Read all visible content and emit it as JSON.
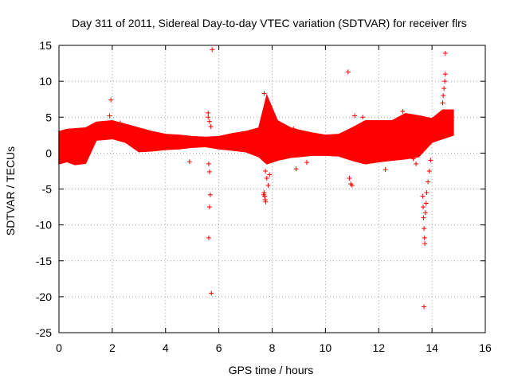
{
  "chart_data": {
    "type": "scatter",
    "title": "Day 311 of 2011, Sidereal Day-to-day VTEC variation (SDTVAR) for receiver flrs",
    "xlabel": "GPS time / hours",
    "ylabel": "SDTVAR / TECUs",
    "xlim": [
      0,
      16
    ],
    "ylim": [
      -25,
      15
    ],
    "xticks": [
      0,
      2,
      4,
      6,
      8,
      10,
      12,
      14,
      16
    ],
    "yticks": [
      -25,
      -20,
      -15,
      -10,
      -5,
      0,
      5,
      10,
      15
    ],
    "grid": true,
    "marker": "+",
    "color": "#ff0000",
    "band": {
      "description": "dense band of samples",
      "x": [
        0.0,
        0.3,
        0.6,
        1.0,
        1.4,
        2.0,
        2.5,
        3.0,
        3.5,
        4.0,
        4.5,
        5.0,
        5.5,
        6.0,
        6.5,
        7.0,
        7.5,
        7.8,
        8.2,
        8.7,
        9.0,
        9.5,
        10.0,
        10.5,
        11.0,
        11.5,
        12.0,
        12.5,
        13.0,
        13.5,
        14.0,
        14.4,
        14.8
      ],
      "lower": [
        -1.5,
        -1.2,
        -1.6,
        -1.4,
        1.8,
        2.0,
        1.5,
        0.2,
        0.3,
        0.5,
        0.6,
        0.8,
        0.9,
        0.6,
        0.4,
        0.2,
        -0.5,
        -1.5,
        -1.0,
        -0.6,
        -0.5,
        -0.3,
        -0.3,
        -0.4,
        -1.0,
        -1.5,
        -1.2,
        -1.0,
        -0.8,
        -0.5,
        1.5,
        2.0,
        2.5
      ],
      "upper": [
        3.0,
        3.3,
        3.4,
        3.5,
        4.3,
        4.5,
        4.0,
        3.5,
        3.0,
        2.6,
        2.5,
        2.3,
        2.2,
        2.3,
        2.7,
        3.0,
        3.5,
        8.0,
        4.5,
        3.5,
        3.2,
        2.8,
        2.5,
        2.6,
        3.5,
        4.5,
        4.5,
        4.5,
        5.5,
        5.2,
        4.8,
        6.0,
        6.0
      ]
    },
    "outliers": [
      {
        "x": 1.95,
        "y": 7.4
      },
      {
        "x": 1.9,
        "y": 5.2
      },
      {
        "x": 2.3,
        "y": 4.2
      },
      {
        "x": 4.9,
        "y": -1.2
      },
      {
        "x": 5.6,
        "y": 5.6
      },
      {
        "x": 5.6,
        "y": 5.0
      },
      {
        "x": 5.65,
        "y": 4.4
      },
      {
        "x": 5.7,
        "y": 3.7
      },
      {
        "x": 5.62,
        "y": -1.5
      },
      {
        "x": 5.65,
        "y": -2.6
      },
      {
        "x": 5.68,
        "y": -5.8
      },
      {
        "x": 5.65,
        "y": -7.5
      },
      {
        "x": 5.62,
        "y": -11.8
      },
      {
        "x": 5.75,
        "y": 14.4
      },
      {
        "x": 5.72,
        "y": -19.5
      },
      {
        "x": 7.7,
        "y": 8.3
      },
      {
        "x": 7.75,
        "y": -2.5
      },
      {
        "x": 7.8,
        "y": -3.5
      },
      {
        "x": 7.85,
        "y": -4.5
      },
      {
        "x": 7.9,
        "y": -3.0
      },
      {
        "x": 7.7,
        "y": -5.5
      },
      {
        "x": 7.72,
        "y": -6.0
      },
      {
        "x": 7.74,
        "y": -6.5
      },
      {
        "x": 7.68,
        "y": -5.8
      },
      {
        "x": 7.76,
        "y": -6.8
      },
      {
        "x": 8.8,
        "y": 3.4
      },
      {
        "x": 8.9,
        "y": -2.2
      },
      {
        "x": 10.85,
        "y": 11.3
      },
      {
        "x": 10.9,
        "y": -3.5
      },
      {
        "x": 10.95,
        "y": -4.3
      },
      {
        "x": 11.0,
        "y": -4.5
      },
      {
        "x": 12.25,
        "y": -2.3
      },
      {
        "x": 13.7,
        "y": -21.4
      },
      {
        "x": 13.65,
        "y": -6.0
      },
      {
        "x": 13.67,
        "y": -7.5
      },
      {
        "x": 13.68,
        "y": -9.0
      },
      {
        "x": 13.7,
        "y": -10.5
      },
      {
        "x": 13.72,
        "y": -11.8
      },
      {
        "x": 13.73,
        "y": -12.6
      },
      {
        "x": 13.75,
        "y": -8.3
      },
      {
        "x": 13.78,
        "y": -7.0
      },
      {
        "x": 13.8,
        "y": -5.5
      },
      {
        "x": 13.85,
        "y": -4.0
      },
      {
        "x": 13.9,
        "y": -2.5
      },
      {
        "x": 13.95,
        "y": -1.0
      },
      {
        "x": 13.4,
        "y": -1.5
      },
      {
        "x": 13.3,
        "y": -0.8
      },
      {
        "x": 14.5,
        "y": 13.9
      },
      {
        "x": 14.5,
        "y": 11.0
      },
      {
        "x": 14.48,
        "y": 10.0
      },
      {
        "x": 14.45,
        "y": 9.0
      },
      {
        "x": 14.42,
        "y": 8.0
      },
      {
        "x": 14.4,
        "y": 7.0
      },
      {
        "x": 14.2,
        "y": 4.9
      },
      {
        "x": 11.1,
        "y": 5.2
      },
      {
        "x": 11.4,
        "y": 5.0
      },
      {
        "x": 9.3,
        "y": -1.3
      },
      {
        "x": 12.9,
        "y": 5.8
      }
    ]
  }
}
